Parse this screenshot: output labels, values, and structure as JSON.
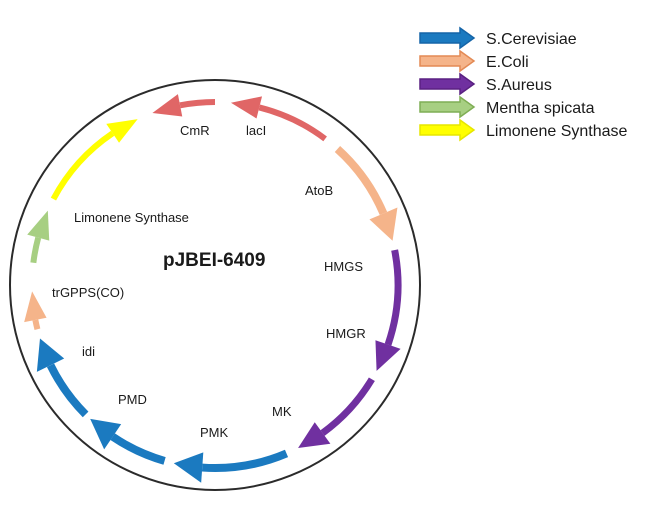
{
  "plasmid": {
    "name": "pJBEI-6409"
  },
  "colors": {
    "s_cerevisiae": "#1b7ac0",
    "e_coli": "#f5a47a",
    "s_aureus": "#7030a0",
    "mentha_spicata": "#a7cf82",
    "limonene_synthase": "#ffff00",
    "cmr_laci": "#e06666",
    "circle": "#2b2b2b"
  },
  "legend": [
    {
      "label": "S.Cerevisiae",
      "color": "#1b7ac0",
      "border": "#1565a8",
      "icon": "arrow-icon-blue"
    },
    {
      "label": "E.Coli",
      "color": "#f5b48a",
      "border": "#e38a55",
      "icon": "arrow-icon-orange"
    },
    {
      "label": "S.Aureus",
      "color": "#7030a0",
      "border": "#5a2182",
      "icon": "arrow-icon-purple"
    },
    {
      "label": "Mentha spicata",
      "color": "#a7cf82",
      "border": "#7fae55",
      "icon": "arrow-icon-green"
    },
    {
      "label": "Limonene Synthase",
      "color": "#ffff00",
      "border": "#e6e600",
      "icon": "arrow-icon-yellow"
    }
  ],
  "genes": [
    {
      "name": "laci",
      "label": "lacI",
      "color": "#e06666"
    },
    {
      "name": "cmr",
      "label": "CmR",
      "color": "#e06666"
    },
    {
      "name": "atob",
      "label": "AtoB",
      "color": "#f5b48a"
    },
    {
      "name": "hmgs",
      "label": "HMGS",
      "color": "#7030a0"
    },
    {
      "name": "hmgr",
      "label": "HMGR",
      "color": "#7030a0"
    },
    {
      "name": "mk",
      "label": "MK",
      "color": "#1b7ac0"
    },
    {
      "name": "pmk",
      "label": "PMK",
      "color": "#1b7ac0"
    },
    {
      "name": "pmd",
      "label": "PMD",
      "color": "#1b7ac0"
    },
    {
      "name": "idi",
      "label": "idi",
      "color": "#f5b48a"
    },
    {
      "name": "trgpps",
      "label": "trGPPS(CO)",
      "color": "#a7cf82"
    },
    {
      "name": "limonene-synthase",
      "label": "Limonene Synthase",
      "color": "#ffff00"
    }
  ]
}
